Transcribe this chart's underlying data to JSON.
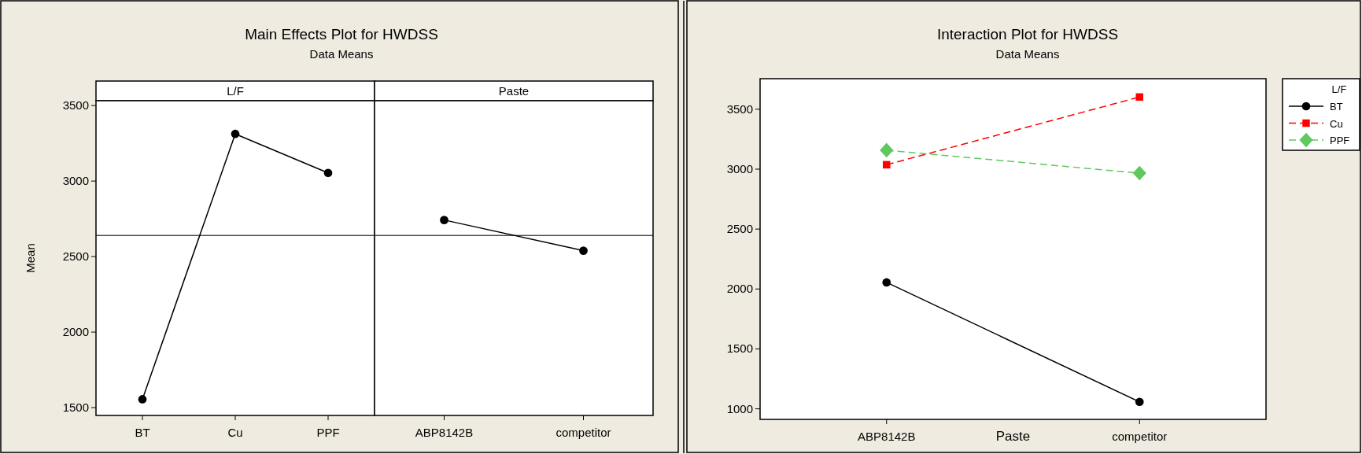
{
  "chart_data": [
    {
      "type": "other",
      "title": "Main Effects Plot for HWDSS",
      "subtitle": "Data Means"
    },
    {
      "type": "line",
      "title": "L/F",
      "ylabel": "Mean",
      "categories": [
        "BT",
        "Cu",
        "PPF"
      ],
      "values": [
        1555,
        3312,
        3054
      ],
      "color": "#000000",
      "marker": "circle",
      "ylim": [
        1448,
        3532
      ],
      "yticks": [
        1500,
        2000,
        2500,
        3000,
        3500
      ],
      "ref_lines": [
        {
          "axis": "y",
          "value": 2640,
          "color": "#000000"
        }
      ]
    },
    {
      "type": "line",
      "title": "Paste",
      "categories": [
        "ABP8142B",
        "competitor"
      ],
      "values": [
        2742,
        2539
      ],
      "color": "#000000",
      "marker": "circle",
      "ylim": [
        1448,
        3532
      ],
      "tick_labels": "x",
      "ref_lines": [
        {
          "axis": "y",
          "value": 2640,
          "color": "#000000"
        }
      ]
    },
    {
      "type": "line",
      "title": "Interaction Plot for HWDSS",
      "subtitle": "Data Means",
      "xlabel": "Paste",
      "legend_title": "L/F",
      "legend": "right",
      "categories": [
        "ABP8142B",
        "competitor"
      ],
      "ylim": [
        912,
        3755
      ],
      "yticks": [
        1000,
        1500,
        2000,
        2500,
        3000,
        3500
      ],
      "series": [
        {
          "name": "BT",
          "color": "#000000",
          "marker": "circle",
          "line_style": "solid",
          "values": [
            2055,
            1058
          ]
        },
        {
          "name": "Cu",
          "color": "#ff0000",
          "marker": "square",
          "line_style": "dashed",
          "values": [
            3037,
            3602
          ]
        },
        {
          "name": "PPF",
          "color": "#5fc85f",
          "marker": "diamond",
          "line_style": "dashed",
          "values": [
            3158,
            2967
          ]
        }
      ]
    }
  ]
}
